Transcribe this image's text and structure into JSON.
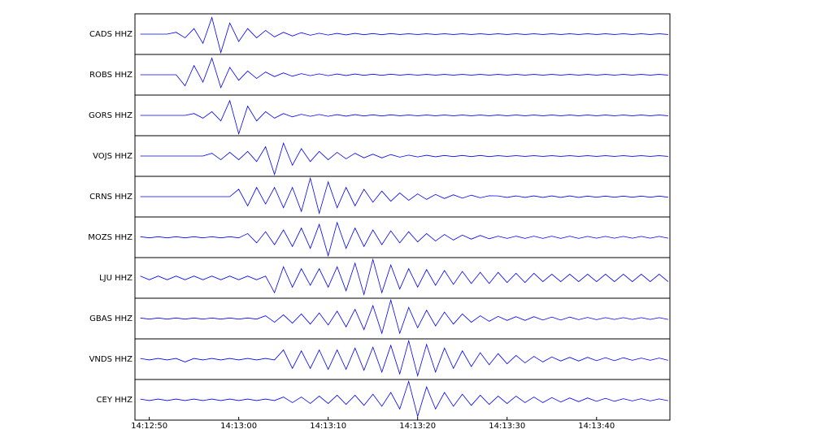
{
  "chart_data": {
    "type": "line",
    "x": [
      49,
      50,
      51,
      52,
      53,
      54,
      55,
      56,
      57,
      58,
      59,
      60,
      61,
      62,
      63,
      64,
      65,
      66,
      67,
      68,
      69,
      70,
      71,
      72,
      73,
      74,
      75,
      76,
      77,
      78,
      79,
      80,
      81,
      82,
      83,
      84,
      85,
      86,
      87,
      88,
      89,
      90,
      91,
      92,
      93,
      94,
      95,
      96,
      97,
      98,
      99,
      100,
      101,
      102,
      103,
      104,
      105,
      106,
      107,
      108
    ],
    "xlim": [
      48.4,
      108.2
    ],
    "xticks": [
      {
        "value": 50,
        "label": "14:12:50"
      },
      {
        "value": 60,
        "label": "14:13:00"
      },
      {
        "value": 70,
        "label": "14:13:10"
      },
      {
        "value": 80,
        "label": "14:13:20"
      },
      {
        "value": 90,
        "label": "14:13:30"
      },
      {
        "value": 100,
        "label": "14:13:40"
      }
    ],
    "ylim": [
      -1.1,
      1.1
    ],
    "series": [
      {
        "name": "CADS HHZ",
        "color": "#0000ff",
        "values": [
          0,
          0,
          0,
          0,
          0.1,
          -0.2,
          0.3,
          -0.5,
          0.9,
          -1,
          0.6,
          -0.4,
          0.3,
          -0.2,
          0.2,
          -0.15,
          0.1,
          -0.1,
          0.08,
          -0.06,
          0.05,
          -0.05,
          0.04,
          -0.04,
          0.04,
          -0.03,
          0.03,
          -0.03,
          0.03,
          -0.02,
          0.02,
          -0.02,
          0.02,
          -0.02,
          0.02,
          -0.02,
          0.02,
          -0.02,
          0.02,
          -0.02,
          0.02,
          -0.02,
          0.02,
          -0.02,
          0.02,
          -0.02,
          0.02,
          -0.02,
          0.02,
          -0.02,
          0.02,
          -0.02,
          0.02,
          -0.02,
          0.02,
          -0.02,
          0.02,
          -0.02,
          0.02,
          -0.02
        ]
      },
      {
        "name": "ROBS HHZ",
        "color": "#0000ff",
        "values": [
          0,
          0,
          0,
          0,
          0,
          -0.6,
          0.5,
          -0.4,
          0.9,
          -0.7,
          0.4,
          -0.3,
          0.2,
          -0.2,
          0.15,
          -0.1,
          0.1,
          -0.08,
          0.06,
          -0.05,
          0.05,
          -0.05,
          0.04,
          -0.04,
          0.04,
          -0.03,
          0.03,
          -0.03,
          0.03,
          -0.02,
          0.02,
          -0.02,
          0.02,
          -0.02,
          0.02,
          -0.02,
          0.02,
          -0.02,
          0.02,
          -0.02,
          0.02,
          -0.02,
          0.02,
          -0.02,
          0.02,
          -0.02,
          0.02,
          -0.02,
          0.02,
          -0.02,
          0.02,
          -0.02,
          0.02,
          -0.02,
          0.02,
          -0.02,
          0.02,
          -0.02,
          0.02,
          -0.02
        ]
      },
      {
        "name": "GORS HHZ",
        "color": "#0000ff",
        "values": [
          0,
          0,
          0,
          0,
          0,
          0,
          0.1,
          -0.15,
          0.2,
          -0.3,
          0.8,
          -1,
          0.5,
          -0.3,
          0.2,
          -0.15,
          0.1,
          -0.08,
          0.06,
          -0.05,
          0.05,
          -0.05,
          0.04,
          -0.04,
          0.04,
          -0.03,
          0.03,
          -0.03,
          0.03,
          -0.02,
          0.02,
          -0.02,
          0.02,
          -0.02,
          0.02,
          -0.02,
          0.02,
          -0.02,
          0.02,
          -0.02,
          0.02,
          -0.02,
          0.02,
          -0.02,
          0.02,
          -0.02,
          0.02,
          -0.02,
          0.02,
          -0.02,
          0.02,
          -0.02,
          0.02,
          -0.02,
          0.02,
          -0.02,
          0.02,
          -0.02,
          0.02,
          -0.02
        ]
      },
      {
        "name": "VOJS HHZ",
        "color": "#0000ff",
        "values": [
          0,
          0,
          0,
          0,
          0,
          0,
          0,
          0,
          0.15,
          -0.2,
          0.2,
          -0.2,
          0.25,
          -0.3,
          0.5,
          -1,
          0.7,
          -0.5,
          0.4,
          -0.3,
          0.25,
          -0.2,
          0.2,
          -0.15,
          0.15,
          -0.1,
          0.1,
          -0.1,
          0.08,
          -0.06,
          0.05,
          -0.05,
          0.04,
          -0.04,
          0.03,
          -0.03,
          0.03,
          -0.03,
          0.03,
          -0.03,
          0.02,
          -0.02,
          0.02,
          -0.02,
          0.02,
          -0.02,
          0.02,
          -0.02,
          0.02,
          -0.02,
          0.02,
          -0.02,
          0.02,
          -0.02,
          0.02,
          -0.02,
          0.02,
          -0.02,
          0.02,
          -0.02
        ]
      },
      {
        "name": "CRNS HHZ",
        "color": "#0000ff",
        "values": [
          0,
          0,
          0,
          0,
          0,
          0,
          0,
          0,
          0,
          0,
          0,
          0.4,
          -0.5,
          0.5,
          -0.4,
          0.5,
          -0.6,
          0.5,
          -0.8,
          1,
          -0.9,
          0.8,
          -0.6,
          0.5,
          -0.5,
          0.4,
          -0.3,
          0.3,
          -0.25,
          0.2,
          -0.2,
          0.15,
          -0.15,
          0.12,
          -0.1,
          0.1,
          -0.08,
          0.08,
          -0.06,
          0.05,
          0.04,
          -0.04,
          0.04,
          -0.04,
          0.04,
          -0.04,
          0.04,
          -0.04,
          0.04,
          -0.04,
          0.03,
          -0.03,
          0.03,
          -0.03,
          0.03,
          -0.03,
          0.03,
          -0.03,
          0.03,
          -0.03
        ]
      },
      {
        "name": "MOZS HHZ",
        "color": "#0000ff",
        "values": [
          0.03,
          -0.03,
          0.03,
          -0.03,
          0.03,
          -0.03,
          0.03,
          -0.03,
          0.03,
          -0.03,
          0.03,
          -0.03,
          0.2,
          -0.3,
          0.3,
          -0.4,
          0.4,
          -0.5,
          0.5,
          -0.6,
          0.7,
          -1,
          0.8,
          -0.6,
          0.5,
          -0.5,
          0.4,
          -0.4,
          0.35,
          -0.3,
          0.3,
          -0.25,
          0.2,
          -0.2,
          0.15,
          -0.15,
          0.12,
          -0.1,
          0.1,
          -0.08,
          0.06,
          -0.06,
          0.06,
          -0.06,
          0.06,
          -0.06,
          0.06,
          -0.06,
          0.06,
          -0.06,
          0.05,
          -0.05,
          0.05,
          -0.05,
          0.05,
          -0.05,
          0.05,
          -0.05,
          0.05,
          -0.05
        ]
      },
      {
        "name": "LJU HHZ",
        "color": "#0000ff",
        "values": [
          0.1,
          -0.1,
          0.1,
          -0.1,
          0.1,
          -0.1,
          0.1,
          -0.1,
          0.1,
          -0.1,
          0.1,
          -0.1,
          0.1,
          -0.1,
          0.1,
          -0.8,
          0.6,
          -0.5,
          0.5,
          -0.4,
          0.5,
          -0.5,
          0.6,
          -0.7,
          0.8,
          -0.9,
          1,
          -0.8,
          0.7,
          -0.6,
          0.5,
          -0.5,
          0.45,
          -0.4,
          0.4,
          -0.35,
          0.35,
          -0.3,
          0.3,
          -0.3,
          0.3,
          -0.25,
          0.25,
          -0.25,
          0.25,
          -0.2,
          0.2,
          -0.2,
          0.2,
          -0.2,
          0.2,
          -0.2,
          0.2,
          -0.2,
          0.2,
          -0.2,
          0.2,
          -0.2,
          0.2,
          -0.2
        ]
      },
      {
        "name": "GBAS HHZ",
        "color": "#0000ff",
        "values": [
          0.03,
          -0.03,
          0.03,
          -0.03,
          0.03,
          -0.03,
          0.03,
          -0.03,
          0.03,
          -0.03,
          0.03,
          -0.03,
          0.03,
          -0.03,
          0.15,
          -0.2,
          0.2,
          -0.25,
          0.25,
          -0.3,
          0.3,
          -0.35,
          0.4,
          -0.45,
          0.5,
          -0.6,
          0.7,
          -0.8,
          1,
          -0.8,
          0.6,
          -0.5,
          0.45,
          -0.4,
          0.35,
          -0.3,
          0.25,
          -0.2,
          0.15,
          -0.15,
          0.12,
          -0.1,
          0.1,
          -0.1,
          0.1,
          -0.08,
          0.08,
          -0.08,
          0.08,
          -0.06,
          0.06,
          -0.06,
          0.05,
          -0.05,
          0.05,
          -0.05,
          0.05,
          -0.05,
          0.05,
          -0.05
        ]
      },
      {
        "name": "VNDS HHZ",
        "color": "#0000ff",
        "values": [
          0.04,
          -0.04,
          0.04,
          -0.04,
          0.04,
          -0.15,
          0.04,
          -0.04,
          0.04,
          -0.04,
          0.04,
          -0.04,
          0.04,
          -0.04,
          0.04,
          -0.04,
          0.5,
          -0.5,
          0.45,
          -0.5,
          0.5,
          -0.55,
          0.5,
          -0.55,
          0.6,
          -0.6,
          0.65,
          -0.7,
          0.75,
          -0.8,
          1,
          -0.9,
          0.8,
          -0.7,
          0.6,
          -0.5,
          0.45,
          -0.4,
          0.35,
          -0.3,
          0.3,
          -0.25,
          0.2,
          -0.2,
          0.15,
          -0.15,
          0.12,
          -0.1,
          0.1,
          -0.1,
          0.1,
          -0.08,
          0.08,
          -0.08,
          0.08,
          -0.06,
          0.06,
          -0.06,
          0.06,
          -0.06
        ]
      },
      {
        "name": "CEY HHZ",
        "color": "#0000ff",
        "values": [
          0.04,
          -0.04,
          0.04,
          -0.04,
          0.04,
          -0.04,
          0.04,
          -0.04,
          0.04,
          -0.04,
          0.04,
          -0.04,
          0.04,
          -0.04,
          0.04,
          -0.04,
          0.15,
          -0.15,
          0.15,
          -0.2,
          0.2,
          -0.2,
          0.25,
          -0.25,
          0.25,
          -0.3,
          0.3,
          -0.35,
          0.4,
          -0.5,
          1,
          -0.9,
          0.7,
          -0.5,
          0.4,
          -0.35,
          0.3,
          -0.3,
          0.25,
          -0.25,
          0.2,
          -0.2,
          0.2,
          -0.15,
          0.15,
          -0.15,
          0.12,
          -0.12,
          0.1,
          -0.1,
          0.1,
          -0.08,
          0.08,
          -0.08,
          0.06,
          -0.06,
          0.06,
          -0.06,
          0.05,
          -0.05
        ]
      }
    ]
  }
}
